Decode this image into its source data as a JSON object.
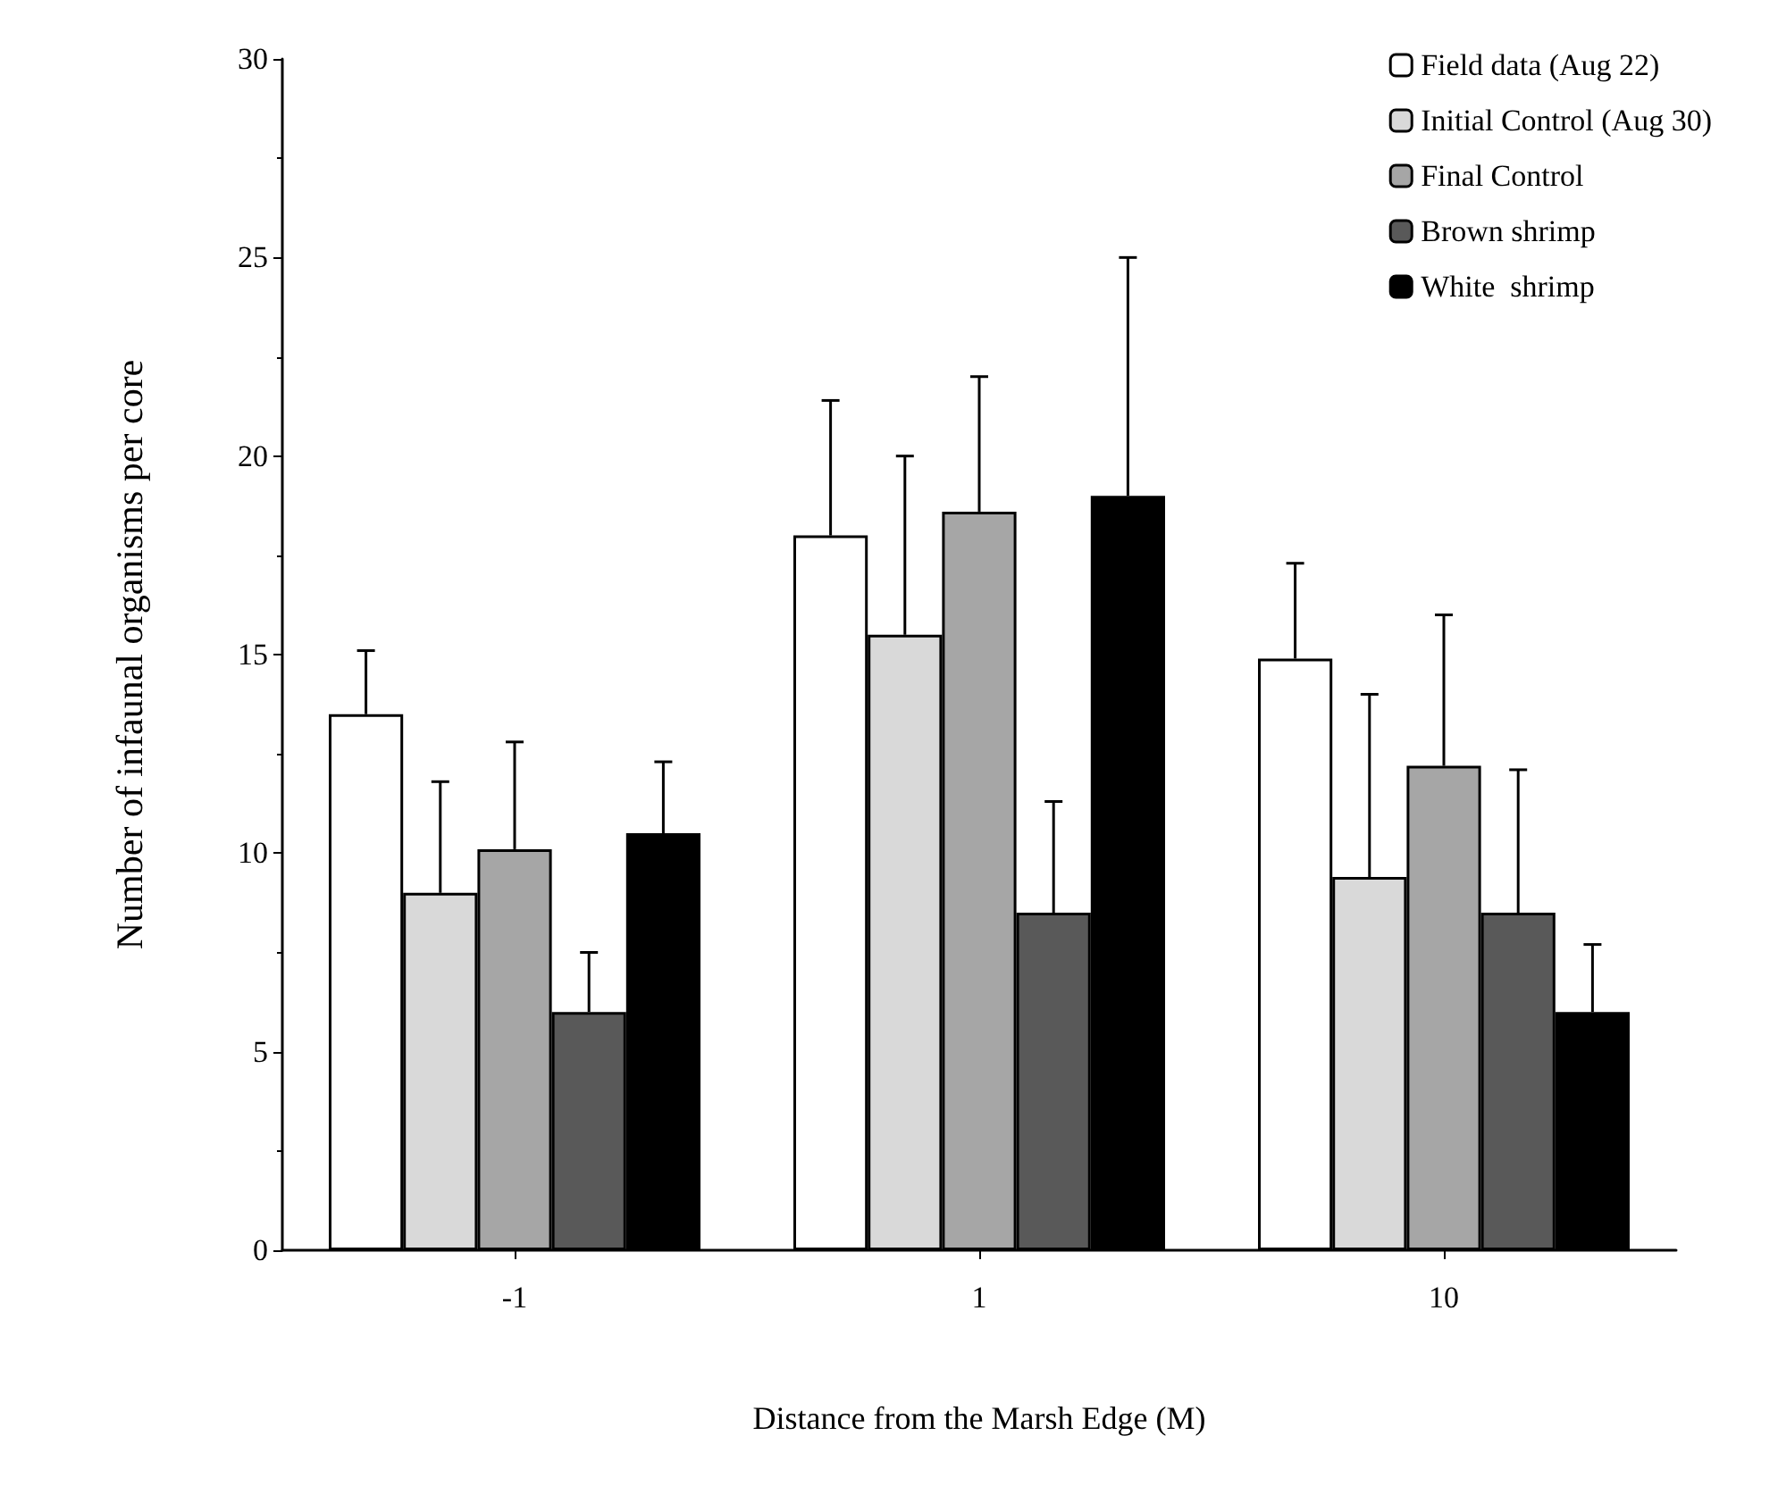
{
  "chart_data": {
    "type": "bar",
    "xlabel": "Distance from the Marsh Edge (M)",
    "ylabel": "Number of infaunal organisms per core",
    "categories": [
      "-1",
      "1",
      "10"
    ],
    "series": [
      {
        "name": "Field data (Aug 22)",
        "color": "#ffffff",
        "values": [
          13.5,
          18.0,
          14.9
        ],
        "errors": [
          [
            13.5,
            15.1
          ],
          [
            18.0,
            21.4
          ],
          [
            14.9,
            17.3
          ]
        ]
      },
      {
        "name": "Initial Control (Aug 30)",
        "color": "#d9d9d9",
        "values": [
          9.0,
          15.5,
          9.4
        ],
        "errors": [
          [
            9.0,
            11.8
          ],
          [
            15.5,
            20.0
          ],
          [
            9.4,
            14.0
          ]
        ]
      },
      {
        "name": "Final Control",
        "color": "#a6a6a6",
        "values": [
          10.1,
          18.6,
          12.2
        ],
        "errors": [
          [
            10.1,
            12.8
          ],
          [
            18.6,
            22.0
          ],
          [
            12.2,
            16.0
          ]
        ]
      },
      {
        "name": "Brown shrimp",
        "color": "#595959",
        "values": [
          6.0,
          8.5,
          8.5
        ],
        "errors": [
          [
            6.0,
            7.5
          ],
          [
            8.5,
            11.3
          ],
          [
            8.5,
            12.1
          ]
        ]
      },
      {
        "name": "White  shrimp",
        "color": "#000000",
        "values": [
          10.5,
          19.0,
          6.0
        ],
        "errors": [
          [
            10.5,
            12.3
          ],
          [
            19.0,
            25.0
          ],
          [
            6.0,
            7.7
          ]
        ]
      }
    ],
    "ylim": [
      0,
      30
    ],
    "yticks": [
      0,
      5,
      10,
      15,
      20,
      25,
      30
    ],
    "grid": false,
    "legend": "top right"
  }
}
